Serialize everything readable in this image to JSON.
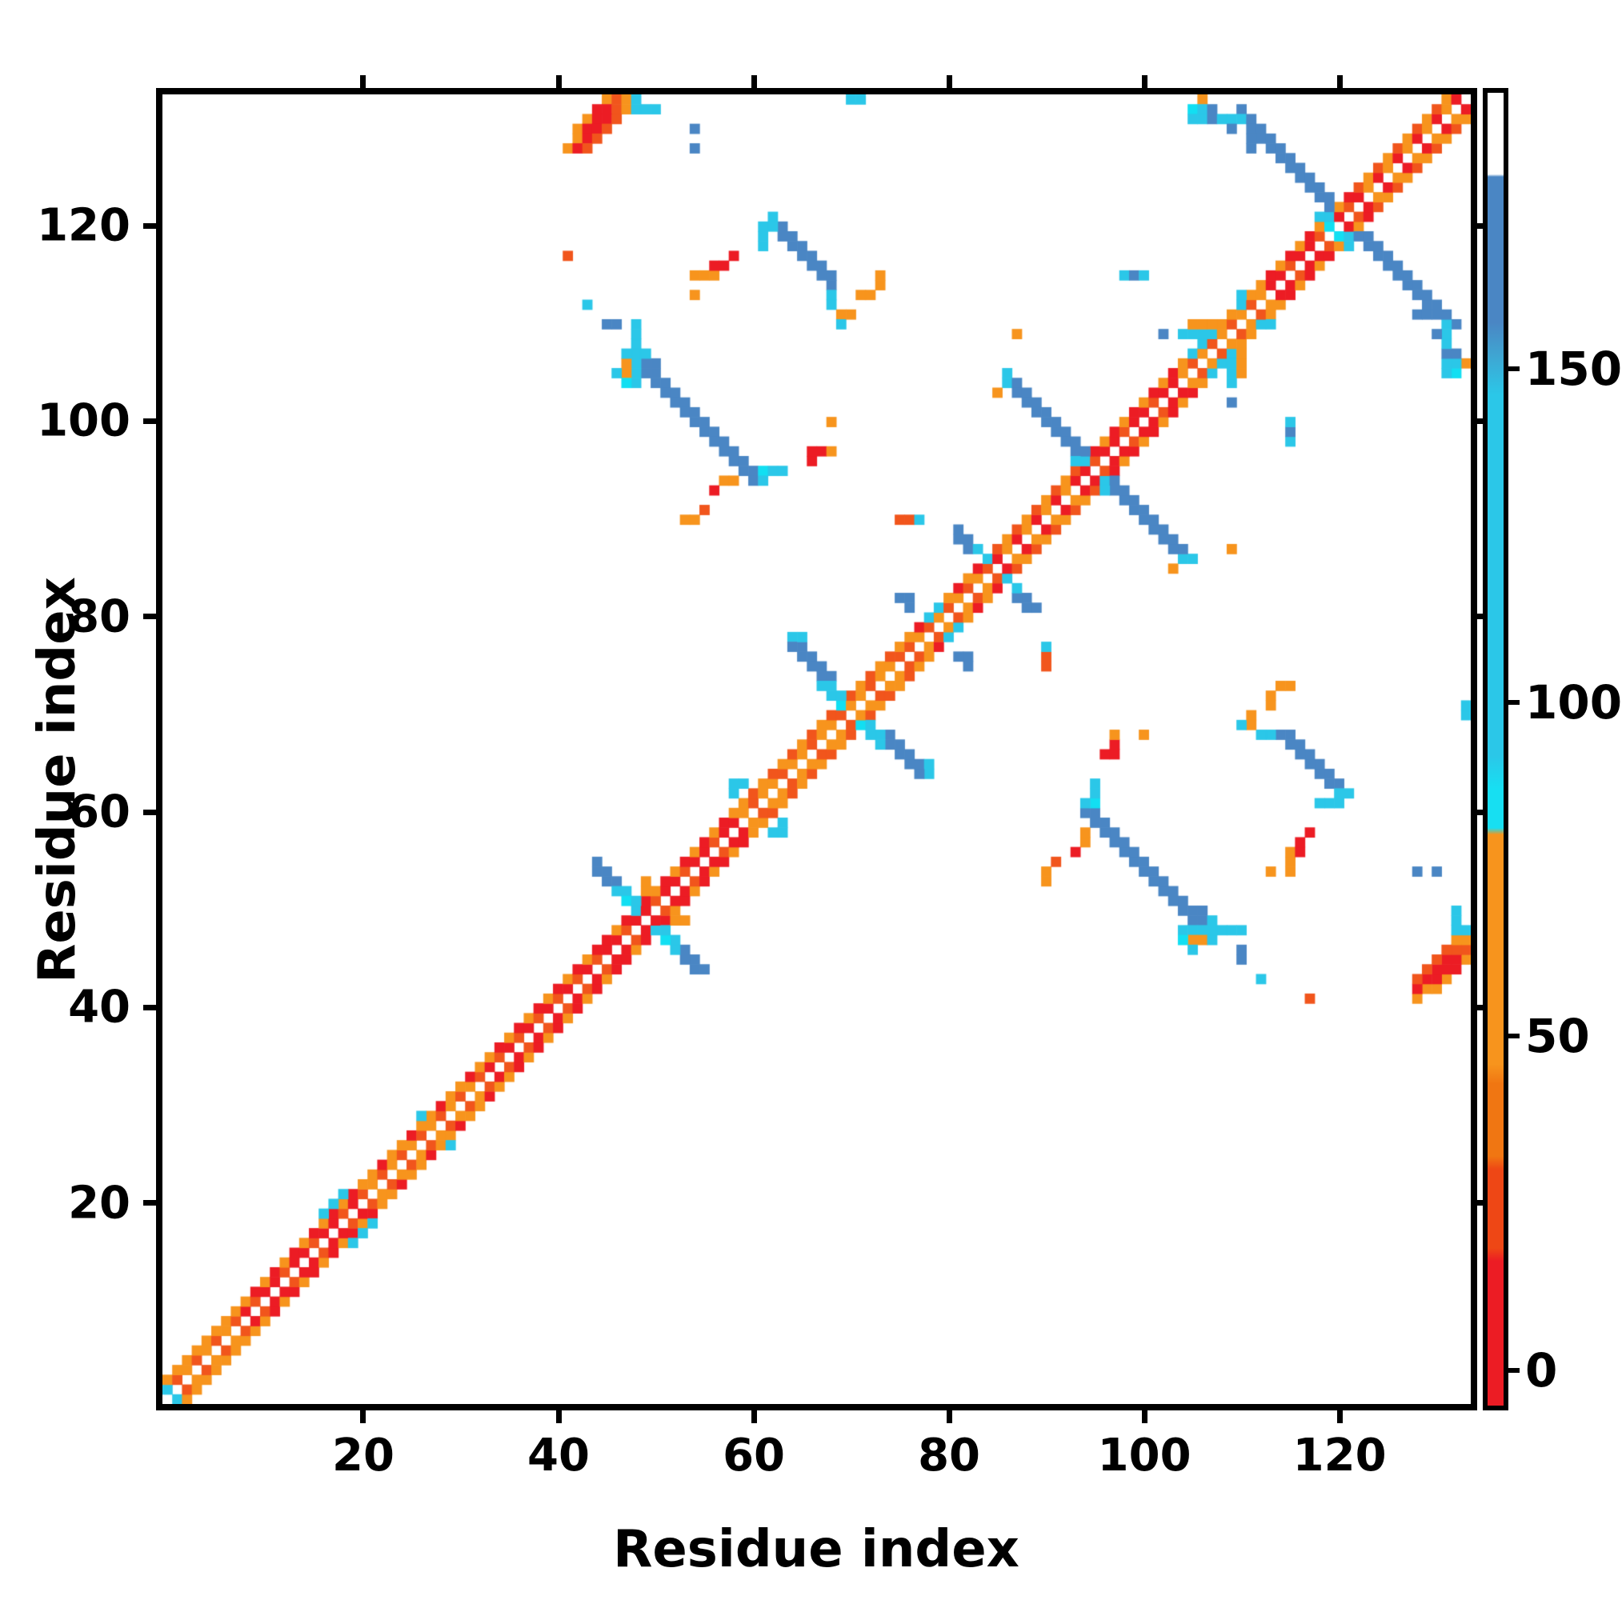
{
  "figure": {
    "xlabel": "Residue index",
    "ylabel": "Residue index"
  },
  "chart_data": {
    "type": "heatmap",
    "subtype": "protein-residue-contact-map",
    "title": "",
    "xlabel": "Residue index",
    "ylabel": "Residue index",
    "axis_range": [
      0,
      134
    ],
    "x_ticks": [
      20,
      40,
      60,
      80,
      100,
      120
    ],
    "y_ticks": [
      20,
      40,
      60,
      80,
      100,
      120
    ],
    "grid": false,
    "background": "#ffffff",
    "symmetric": true,
    "colorbar": {
      "position": "right",
      "ticks": [
        0,
        50,
        100,
        150
      ],
      "value_range": [
        -6,
        192
      ],
      "stops": [
        {
          "frac": 0.0,
          "color": "#ffffff"
        },
        {
          "frac": 0.062,
          "color": "#ffffff"
        },
        {
          "frac": 0.064,
          "color": "#4a86c4"
        },
        {
          "frac": 0.175,
          "color": "#4a86c4"
        },
        {
          "frac": 0.2,
          "color": "#3fa5d2"
        },
        {
          "frac": 0.23,
          "color": "#2bc7e8"
        },
        {
          "frac": 0.505,
          "color": "#2bc7e8"
        },
        {
          "frac": 0.53,
          "color": "#17dff2"
        },
        {
          "frac": 0.56,
          "color": "#17dff2"
        },
        {
          "frac": 0.565,
          "color": "#f7941d"
        },
        {
          "frac": 0.74,
          "color": "#f7941d"
        },
        {
          "frac": 0.755,
          "color": "#f07612"
        },
        {
          "frac": 0.81,
          "color": "#f07612"
        },
        {
          "frac": 0.82,
          "color": "#ee4715"
        },
        {
          "frac": 0.88,
          "color": "#ee4715"
        },
        {
          "frac": 0.89,
          "color": "#ec1c24"
        },
        {
          "frac": 1.0,
          "color": "#ec1c24"
        }
      ]
    },
    "palette": {
      "r": "#ec1c24",
      "q": "#f1551c",
      "o": "#f7941d",
      "c": "#2bc7e8",
      "C": "#12dff2",
      "b": "#4a86c4"
    },
    "n_residues": 134,
    "diagonal_segments": [
      {
        "from": 0,
        "to": 8,
        "off1": [
          "o",
          "q"
        ],
        "off2": [
          "o",
          "o"
        ]
      },
      {
        "from": 8,
        "to": 20,
        "off1": [
          "r",
          "q",
          "r"
        ],
        "off2": [
          "o",
          "r"
        ]
      },
      {
        "from": 20,
        "to": 33,
        "off1": [
          "q",
          "o"
        ],
        "off2": [
          "o",
          "o",
          "r"
        ]
      },
      {
        "from": 33,
        "to": 45,
        "off1": [
          "r",
          "q"
        ],
        "off2": [
          "o",
          "r"
        ]
      },
      {
        "from": 45,
        "to": 59,
        "off1": [
          "r",
          "r",
          "q"
        ],
        "off2": [
          "r",
          "o"
        ]
      },
      {
        "from": 59,
        "to": 76,
        "off1": [
          "o",
          "q",
          "o"
        ],
        "off2": [
          "o",
          "q"
        ]
      },
      {
        "from": 76,
        "to": 85,
        "off1": [
          "q",
          "o"
        ],
        "off2": [
          "o",
          "r"
        ]
      },
      {
        "from": 85,
        "to": 94,
        "off1": [
          "r",
          "o"
        ],
        "off2": [
          "q",
          "o"
        ]
      },
      {
        "from": 94,
        "to": 104,
        "off1": [
          "r",
          "q",
          "r"
        ],
        "off2": [
          "o",
          "r"
        ]
      },
      {
        "from": 104,
        "to": 113,
        "off1": [
          "o",
          "q"
        ],
        "off2": [
          "o",
          "o"
        ]
      },
      {
        "from": 113,
        "to": 122,
        "off1": [
          "r",
          "r",
          "q"
        ],
        "off2": [
          "r",
          "o"
        ]
      },
      {
        "from": 122,
        "to": 134,
        "off1": [
          "r",
          "o"
        ],
        "off2": [
          "q",
          "o"
        ]
      }
    ],
    "antidiagonal_arms": [
      {
        "name": "hairpin-50",
        "i0": 44,
        "i1": 47,
        "sum": 99,
        "color": "b"
      },
      {
        "name": "hairpin-69",
        "i0": 64,
        "i1": 68,
        "sum": 142,
        "color": "b"
      },
      {
        "name": "sheet-49-106",
        "i0": 49,
        "i1": 60,
        "sum": 155,
        "color": "b"
      },
      {
        "name": "sheet-63-120",
        "i0": 63,
        "i1": 67,
        "sum": 183,
        "color": "b"
      },
      {
        "name": "hairpin-95",
        "i0": 86,
        "i1": 94,
        "sum": 191,
        "color": "b"
      },
      {
        "name": "hairpin-120",
        "i0": 110,
        "i1": 119,
        "sum": 242,
        "color": "b"
      }
    ],
    "cells": [
      [
        45,
        133,
        "o"
      ],
      [
        46,
        133,
        "q"
      ],
      [
        47,
        133,
        "o"
      ],
      [
        48,
        133,
        "c"
      ],
      [
        44,
        132,
        "r"
      ],
      [
        45,
        132,
        "r"
      ],
      [
        46,
        132,
        "q"
      ],
      [
        47,
        132,
        "o"
      ],
      [
        48,
        132,
        "c"
      ],
      [
        49,
        132,
        "c"
      ],
      [
        50,
        132,
        "c"
      ],
      [
        43,
        131,
        "o"
      ],
      [
        44,
        131,
        "r"
      ],
      [
        45,
        131,
        "r"
      ],
      [
        46,
        131,
        "q"
      ],
      [
        42,
        130,
        "o"
      ],
      [
        43,
        130,
        "r"
      ],
      [
        44,
        130,
        "r"
      ],
      [
        45,
        130,
        "q"
      ],
      [
        42,
        129,
        "o"
      ],
      [
        43,
        129,
        "r"
      ],
      [
        44,
        129,
        "q"
      ],
      [
        41,
        128,
        "o"
      ],
      [
        42,
        128,
        "r"
      ],
      [
        43,
        128,
        "q"
      ],
      [
        54,
        130,
        "b"
      ],
      [
        54,
        128,
        "b"
      ],
      [
        70,
        133,
        "c"
      ],
      [
        71,
        133,
        "c"
      ],
      [
        106,
        133,
        "o"
      ],
      [
        105,
        132,
        "c"
      ],
      [
        106,
        132,
        "c"
      ],
      [
        107,
        132,
        "b"
      ],
      [
        105,
        131,
        "C"
      ],
      [
        106,
        131,
        "C"
      ],
      [
        107,
        131,
        "b"
      ],
      [
        108,
        131,
        "c"
      ],
      [
        109,
        131,
        "b"
      ],
      [
        109,
        130,
        "b"
      ],
      [
        118,
        121,
        "c"
      ],
      [
        119,
        121,
        "c"
      ],
      [
        119,
        120,
        "C"
      ],
      [
        128,
        111,
        "b"
      ],
      [
        129,
        111,
        "b"
      ],
      [
        130,
        111,
        "b"
      ],
      [
        131,
        111,
        "b"
      ],
      [
        131,
        110,
        "c"
      ],
      [
        131,
        109,
        "c"
      ],
      [
        131,
        106,
        "c"
      ],
      [
        131,
        105,
        "c"
      ],
      [
        132,
        106,
        "c"
      ],
      [
        132,
        105,
        "C"
      ],
      [
        133,
        106,
        "o"
      ],
      [
        46,
        52,
        "c"
      ],
      [
        47,
        52,
        "c"
      ],
      [
        47,
        51,
        "C"
      ],
      [
        48,
        51,
        "c"
      ],
      [
        48,
        50,
        "c"
      ],
      [
        49,
        53,
        "o"
      ],
      [
        49,
        52,
        "o"
      ],
      [
        64,
        78,
        "c"
      ],
      [
        65,
        78,
        "c"
      ],
      [
        67,
        73,
        "c"
      ],
      [
        68,
        73,
        "c"
      ],
      [
        68,
        72,
        "c"
      ],
      [
        69,
        72,
        "c"
      ],
      [
        69,
        71,
        "C"
      ],
      [
        75,
        82,
        "b"
      ],
      [
        76,
        82,
        "b"
      ],
      [
        76,
        81,
        "b"
      ],
      [
        86,
        105,
        "c"
      ],
      [
        86,
        104,
        "c"
      ],
      [
        85,
        103,
        "o"
      ],
      [
        93,
        96,
        "c"
      ],
      [
        94,
        96,
        "c"
      ],
      [
        81,
        89,
        "b"
      ],
      [
        81,
        88,
        "b"
      ],
      [
        82,
        88,
        "b"
      ],
      [
        82,
        87,
        "b"
      ],
      [
        83,
        87,
        "c"
      ],
      [
        84,
        86,
        "c"
      ],
      [
        48,
        104,
        "c"
      ],
      [
        48,
        105,
        "c"
      ],
      [
        48,
        106,
        "c"
      ],
      [
        48,
        107,
        "c"
      ],
      [
        48,
        108,
        "C"
      ],
      [
        48,
        109,
        "c"
      ],
      [
        48,
        110,
        "c"
      ],
      [
        47,
        105,
        "o"
      ],
      [
        47,
        106,
        "o"
      ],
      [
        46,
        105,
        "c"
      ],
      [
        47,
        104,
        "C"
      ],
      [
        61,
        95,
        "C"
      ],
      [
        61,
        94,
        "c"
      ],
      [
        62,
        95,
        "c"
      ],
      [
        63,
        95,
        "c"
      ],
      [
        57,
        94,
        "o"
      ],
      [
        58,
        94,
        "o"
      ],
      [
        56,
        93,
        "r"
      ],
      [
        53,
        90,
        "o"
      ],
      [
        54,
        90,
        "o"
      ],
      [
        55,
        91,
        "q"
      ],
      [
        61,
        120,
        "c"
      ],
      [
        61,
        119,
        "c"
      ],
      [
        61,
        118,
        "c"
      ],
      [
        62,
        121,
        "c"
      ],
      [
        62,
        120,
        "c"
      ],
      [
        68,
        115,
        "b"
      ],
      [
        68,
        114,
        "b"
      ],
      [
        68,
        113,
        "c"
      ],
      [
        68,
        112,
        "c"
      ],
      [
        69,
        111,
        "o"
      ],
      [
        69,
        110,
        "c"
      ],
      [
        70,
        111,
        "o"
      ],
      [
        71,
        113,
        "o"
      ],
      [
        72,
        113,
        "o"
      ],
      [
        73,
        114,
        "o"
      ],
      [
        73,
        115,
        "o"
      ],
      [
        54,
        113,
        "o"
      ],
      [
        54,
        115,
        "o"
      ],
      [
        55,
        115,
        "o"
      ],
      [
        56,
        115,
        "o"
      ],
      [
        56,
        116,
        "r"
      ],
      [
        58,
        117,
        "r"
      ],
      [
        41,
        117,
        "q"
      ],
      [
        43,
        112,
        "c"
      ],
      [
        45,
        110,
        "b"
      ],
      [
        46,
        110,
        "b"
      ],
      [
        87,
        109,
        "o"
      ],
      [
        109,
        102,
        "b"
      ],
      [
        102,
        109,
        "b"
      ],
      [
        98,
        115,
        "c"
      ],
      [
        99,
        115,
        "b"
      ],
      [
        100,
        115,
        "c"
      ],
      [
        66,
        96,
        "r"
      ],
      [
        66,
        97,
        "r"
      ],
      [
        67,
        97,
        "r"
      ],
      [
        68,
        97,
        "o"
      ],
      [
        68,
        100,
        "o"
      ],
      [
        63,
        95,
        "c"
      ],
      [
        75,
        90,
        "q"
      ],
      [
        76,
        90,
        "q"
      ],
      [
        77,
        90,
        "c"
      ],
      [
        26,
        29,
        "c"
      ],
      [
        16,
        19,
        "c"
      ],
      [
        17,
        20,
        "c"
      ],
      [
        18,
        21,
        "c"
      ],
      [
        29,
        31,
        "o"
      ],
      [
        30,
        32,
        "o"
      ],
      [
        78,
        80,
        "c"
      ],
      [
        79,
        81,
        "c"
      ],
      [
        58,
        62,
        "c"
      ],
      [
        58,
        63,
        "c"
      ],
      [
        59,
        63,
        "c"
      ],
      [
        105,
        107,
        "c"
      ],
      [
        106,
        108,
        "c"
      ],
      [
        110,
        112,
        "c"
      ],
      [
        110,
        113,
        "c"
      ],
      [
        112,
        110,
        "c"
      ],
      [
        113,
        110,
        "c"
      ],
      [
        109,
        104,
        "c"
      ],
      [
        109,
        105,
        "c"
      ],
      [
        109,
        106,
        "c"
      ],
      [
        109,
        107,
        "c"
      ],
      [
        110,
        105,
        "o"
      ],
      [
        110,
        106,
        "o"
      ],
      [
        110,
        107,
        "o"
      ],
      [
        0,
        1,
        "c"
      ],
      [
        115,
        54,
        "o"
      ],
      [
        115,
        55,
        "o"
      ],
      [
        115,
        56,
        "o"
      ],
      [
        116,
        56,
        "r"
      ],
      [
        116,
        57,
        "r"
      ],
      [
        96,
        66,
        "r"
      ],
      [
        97,
        66,
        "r"
      ],
      [
        97,
        67,
        "r"
      ],
      [
        97,
        68,
        "o"
      ],
      [
        100,
        68,
        "o"
      ],
      [
        95,
        63,
        "c"
      ],
      [
        106,
        50,
        "b"
      ],
      [
        106,
        49,
        "b"
      ],
      [
        107,
        49,
        "c"
      ],
      [
        108,
        48,
        "c"
      ],
      [
        109,
        48,
        "c"
      ],
      [
        110,
        48,
        "c"
      ],
      [
        105,
        47,
        "o"
      ],
      [
        107,
        47,
        "c"
      ],
      [
        110,
        46,
        "b"
      ],
      [
        110,
        45,
        "b"
      ],
      [
        112,
        43,
        "c"
      ]
    ]
  }
}
